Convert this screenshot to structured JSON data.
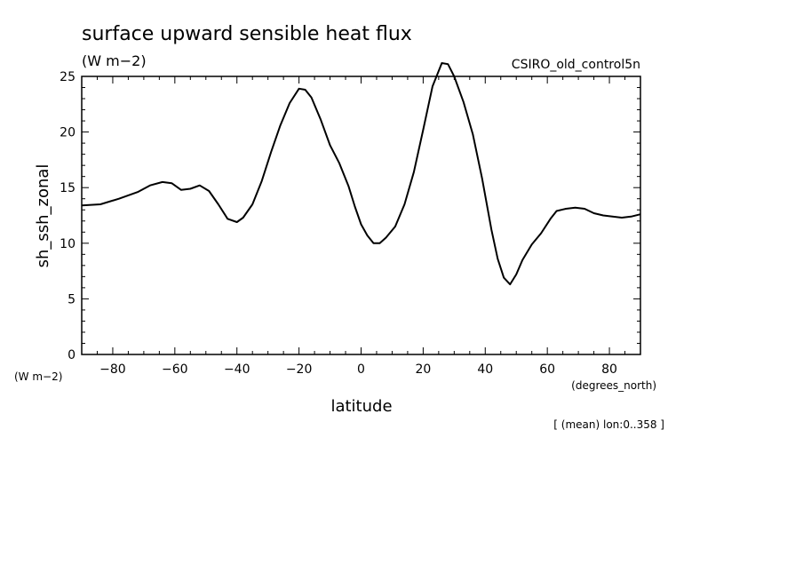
{
  "title": "surface upward sensible heat flux",
  "units": "(W m−2)",
  "dataset": "CSIRO_old_control5n",
  "ylabel": "sh_ssh_zonal",
  "yunits": "(W m−2)",
  "xlabel": "latitude",
  "xunits": "(degrees_north)",
  "footnote": "[ (mean) lon:0..358 ]",
  "chart_data": {
    "type": "line",
    "title": "surface upward sensible heat flux",
    "xlabel": "latitude",
    "ylabel": "sh_ssh_zonal",
    "xlim": [
      -90,
      90
    ],
    "ylim": [
      0,
      25
    ],
    "xticks": [
      -80,
      -60,
      -40,
      -20,
      0,
      20,
      40,
      60,
      80
    ],
    "yticks": [
      0,
      5,
      10,
      15,
      20,
      25
    ],
    "grid": false,
    "series": [
      {
        "x": [
          -90,
          -84,
          -78,
          -72,
          -68,
          -64,
          -61,
          -58,
          -55,
          -52,
          -49,
          -46,
          -43,
          -40,
          -38,
          -35,
          -32,
          -29,
          -26,
          -23,
          -20,
          -18,
          -16,
          -13,
          -10,
          -7,
          -4,
          -2,
          0,
          2,
          4,
          6,
          8,
          11,
          14,
          17,
          20,
          23,
          26,
          28,
          30,
          33,
          36,
          39,
          42,
          44,
          46,
          48,
          50,
          52,
          55,
          58,
          61,
          63,
          66,
          69,
          72,
          75,
          78,
          81,
          84,
          87,
          90
        ],
        "y": [
          13.4,
          13.5,
          14.0,
          14.6,
          15.2,
          15.5,
          15.4,
          14.8,
          14.9,
          15.2,
          14.7,
          13.5,
          12.2,
          11.9,
          12.3,
          13.5,
          15.6,
          18.2,
          20.6,
          22.6,
          23.9,
          23.8,
          23.1,
          21.1,
          18.8,
          17.2,
          15.1,
          13.3,
          11.7,
          10.7,
          10.0,
          10.0,
          10.5,
          11.5,
          13.5,
          16.4,
          20.2,
          24.1,
          26.2,
          26.1,
          25.0,
          22.7,
          19.8,
          15.8,
          11.2,
          8.6,
          6.9,
          6.3,
          7.2,
          8.5,
          9.9,
          10.9,
          12.2,
          12.9,
          13.1,
          13.2,
          13.1,
          12.7,
          12.5,
          12.4,
          12.3,
          12.4,
          12.6
        ]
      }
    ]
  }
}
